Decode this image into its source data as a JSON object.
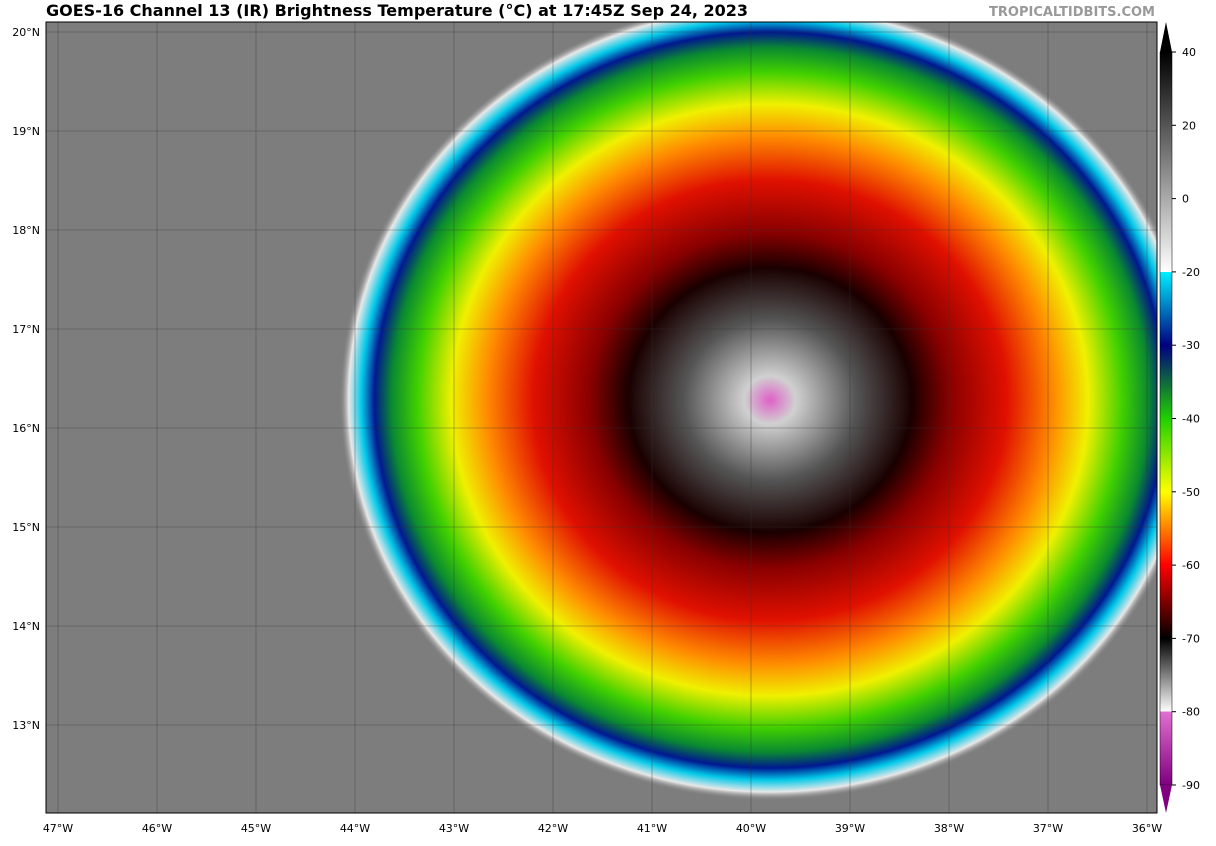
{
  "header": {
    "title": "GOES-16 Channel 13 (IR) Brightness Temperature (°C) at 17:45Z Sep 24, 2023",
    "watermark": "TROPICALTIDBITS.COM"
  },
  "map": {
    "lat_labels": [
      "20°N",
      "19°N",
      "18°N",
      "17°N",
      "16°N",
      "15°N",
      "14°N",
      "13°N"
    ],
    "lon_labels": [
      "47°W",
      "46°W",
      "45°W",
      "44°W",
      "43°W",
      "42°W",
      "41°W",
      "40°W",
      "39°W",
      "38°W",
      "37°W",
      "36°W"
    ]
  },
  "colorbar": {
    "tick_labels": [
      "40",
      "20",
      "0",
      "-20",
      "-30",
      "-40",
      "-50",
      "-60",
      "-70",
      "-80",
      "-90"
    ]
  }
}
